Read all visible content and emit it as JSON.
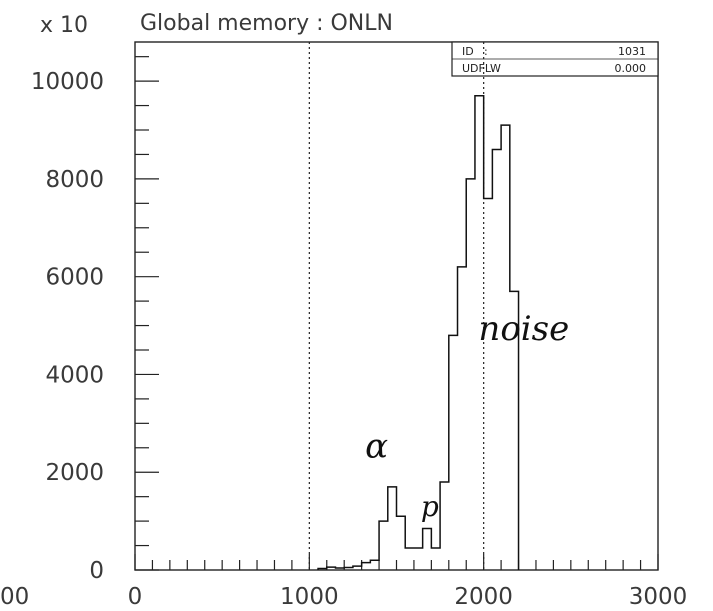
{
  "chart_data": {
    "type": "histogram",
    "title": "Global memory  : ONLN",
    "y_multiplier_label": "x 10",
    "stats_box": [
      {
        "key": "ID",
        "value": "1031"
      },
      {
        "key": "UDFLW",
        "value": "0.000"
      }
    ],
    "xlim": [
      0,
      3000
    ],
    "ylim": [
      0,
      10800
    ],
    "x_tick_labels": [
      "0",
      "1000",
      "2000",
      "3000"
    ],
    "x_tick_values": [
      0,
      1000,
      2000,
      3000
    ],
    "x_minor_step": 100,
    "y_tick_labels": [
      "0",
      "2000",
      "4000",
      "6000",
      "8000",
      "10000"
    ],
    "y_tick_values": [
      0,
      2000,
      4000,
      6000,
      8000,
      10000
    ],
    "y_minor_step": 500,
    "left_cut_label": "00",
    "dotted_lines_x": [
      1000,
      2000
    ],
    "bin_width": 50,
    "bins": [
      {
        "x": 1050,
        "y": 30
      },
      {
        "x": 1100,
        "y": 60
      },
      {
        "x": 1150,
        "y": 40
      },
      {
        "x": 1200,
        "y": 50
      },
      {
        "x": 1250,
        "y": 80
      },
      {
        "x": 1300,
        "y": 150
      },
      {
        "x": 1350,
        "y": 200
      },
      {
        "x": 1400,
        "y": 1000
      },
      {
        "x": 1450,
        "y": 1700
      },
      {
        "x": 1500,
        "y": 1100
      },
      {
        "x": 1550,
        "y": 450
      },
      {
        "x": 1600,
        "y": 450
      },
      {
        "x": 1650,
        "y": 850
      },
      {
        "x": 1700,
        "y": 450
      },
      {
        "x": 1750,
        "y": 1800
      },
      {
        "x": 1800,
        "y": 4800
      },
      {
        "x": 1850,
        "y": 6200
      },
      {
        "x": 1900,
        "y": 8000
      },
      {
        "x": 1950,
        "y": 9700
      },
      {
        "x": 2000,
        "y": 7600
      },
      {
        "x": 2050,
        "y": 8600
      },
      {
        "x": 2100,
        "y": 9100
      },
      {
        "x": 2150,
        "y": 5700
      }
    ],
    "annotations": [
      {
        "text": "α",
        "x": 1320,
        "y": 2300
      },
      {
        "text": "p",
        "x": 1640,
        "y": 1100
      },
      {
        "text": "noise",
        "x": 1970,
        "y": 4700
      }
    ]
  }
}
